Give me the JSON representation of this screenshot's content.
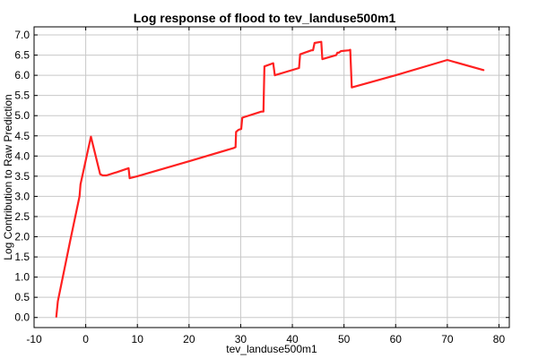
{
  "chart_data": {
    "type": "line",
    "title": "Log response of flood to tev_landuse500m1",
    "xlabel": "tev_landuse500m1",
    "ylabel": "Log Contribution to Raw Prediction",
    "xlim": [
      -10,
      82
    ],
    "ylim": [
      -0.25,
      7.2
    ],
    "xticks": [
      -10,
      0,
      10,
      20,
      30,
      40,
      50,
      60,
      70,
      80
    ],
    "yticks": [
      0.0,
      0.5,
      1.0,
      1.5,
      2.0,
      2.5,
      3.0,
      3.5,
      4.0,
      4.5,
      5.0,
      5.5,
      6.0,
      6.5,
      7.0
    ],
    "grid": true,
    "legend": "none",
    "series": [
      {
        "color": "#ff2020",
        "points": [
          [
            -5.7,
            0.02
          ],
          [
            -5.4,
            0.4
          ],
          [
            -3,
            1.9
          ],
          [
            -1.2,
            3.0
          ],
          [
            -1.0,
            3.3
          ],
          [
            1.0,
            4.48
          ],
          [
            2.8,
            3.55
          ],
          [
            3.3,
            3.52
          ],
          [
            4.0,
            3.52
          ],
          [
            6.0,
            3.6
          ],
          [
            8.3,
            3.7
          ],
          [
            8.5,
            3.45
          ],
          [
            10,
            3.5
          ],
          [
            20,
            3.87
          ],
          [
            28.7,
            4.2
          ],
          [
            29.0,
            4.22
          ],
          [
            29.1,
            4.6
          ],
          [
            29.6,
            4.65
          ],
          [
            30.1,
            4.67
          ],
          [
            30.3,
            4.95
          ],
          [
            34.0,
            5.1
          ],
          [
            34.4,
            5.1
          ],
          [
            34.6,
            6.22
          ],
          [
            36.3,
            6.3
          ],
          [
            36.6,
            6.0
          ],
          [
            41.3,
            6.18
          ],
          [
            41.5,
            6.52
          ],
          [
            43.7,
            6.62
          ],
          [
            44.0,
            6.62
          ],
          [
            44.3,
            6.8
          ],
          [
            45.6,
            6.83
          ],
          [
            45.8,
            6.4
          ],
          [
            48.5,
            6.5
          ],
          [
            48.7,
            6.56
          ],
          [
            49.0,
            6.56
          ],
          [
            49.4,
            6.6
          ],
          [
            51.0,
            6.62
          ],
          [
            51.2,
            6.63
          ],
          [
            51.5,
            5.7
          ],
          [
            60,
            6.0
          ],
          [
            70,
            6.38
          ],
          [
            77,
            6.13
          ]
        ]
      }
    ]
  }
}
